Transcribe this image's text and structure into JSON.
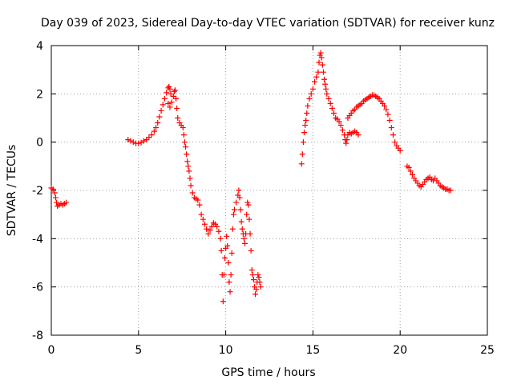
{
  "chart_data": {
    "type": "scatter",
    "title": "Day 039 of 2023, Sidereal Day-to-day VTEC variation (SDTVAR) for receiver kunz",
    "xlabel": "GPS time / hours",
    "ylabel": "SDTVAR / TECUs",
    "xlim": [
      0,
      25
    ],
    "ylim": [
      -8,
      4
    ],
    "xticks": [
      0,
      5,
      10,
      15,
      20,
      25
    ],
    "yticks": [
      -8,
      -6,
      -4,
      -2,
      0,
      2,
      4
    ],
    "xtick_labels": [
      "0",
      "5",
      "10",
      "15",
      "20",
      "25"
    ],
    "ytick_labels": [
      "-8",
      "-6",
      "-4",
      "-2",
      "0",
      "2",
      "4"
    ],
    "grid": true,
    "legend": "none",
    "marker": "plus",
    "color": "#ff0000",
    "segments": [
      [
        [
          0.0,
          -1.9
        ],
        [
          0.1,
          -1.95
        ],
        [
          0.2,
          -2.1
        ],
        [
          0.25,
          -2.3
        ],
        [
          0.3,
          -2.5
        ],
        [
          0.35,
          -2.65
        ],
        [
          0.45,
          -2.6
        ],
        [
          0.55,
          -2.55
        ],
        [
          0.65,
          -2.6
        ],
        [
          0.75,
          -2.55
        ],
        [
          0.85,
          -2.5
        ]
      ],
      [
        [
          4.4,
          0.1
        ],
        [
          4.55,
          0.05
        ],
        [
          4.7,
          0.0
        ],
        [
          4.85,
          -0.05
        ],
        [
          5.0,
          -0.05
        ],
        [
          5.15,
          -0.02
        ],
        [
          5.3,
          0.05
        ],
        [
          5.45,
          0.1
        ],
        [
          5.6,
          0.2
        ],
        [
          5.75,
          0.3
        ],
        [
          5.9,
          0.45
        ],
        [
          6.0,
          0.6
        ],
        [
          6.1,
          0.8
        ],
        [
          6.2,
          1.05
        ],
        [
          6.3,
          1.3
        ],
        [
          6.4,
          1.55
        ],
        [
          6.5,
          1.8
        ],
        [
          6.6,
          2.05
        ],
        [
          6.7,
          2.25
        ],
        [
          6.75,
          2.3
        ],
        [
          6.8,
          2.2
        ],
        [
          6.85,
          2.0
        ],
        [
          6.7,
          1.6
        ],
        [
          6.8,
          1.45
        ],
        [
          6.9,
          1.65
        ],
        [
          7.0,
          1.9
        ],
        [
          7.05,
          2.1
        ],
        [
          7.1,
          2.15
        ],
        [
          7.15,
          1.8
        ],
        [
          7.2,
          1.4
        ],
        [
          7.25,
          1.0
        ],
        [
          7.35,
          0.8
        ],
        [
          7.45,
          0.7
        ],
        [
          7.55,
          0.6
        ],
        [
          7.6,
          0.3
        ],
        [
          7.65,
          0.0
        ],
        [
          7.7,
          -0.2
        ],
        [
          7.75,
          -0.5
        ],
        [
          7.8,
          -0.8
        ],
        [
          7.85,
          -1.0
        ],
        [
          7.9,
          -1.2
        ],
        [
          7.95,
          -1.5
        ],
        [
          8.0,
          -1.8
        ],
        [
          8.1,
          -2.1
        ],
        [
          8.2,
          -2.3
        ],
        [
          8.3,
          -2.35
        ],
        [
          8.4,
          -2.4
        ],
        [
          8.5,
          -2.6
        ],
        [
          8.6,
          -3.0
        ],
        [
          8.7,
          -3.2
        ],
        [
          8.8,
          -3.4
        ],
        [
          8.9,
          -3.6
        ],
        [
          9.0,
          -3.8
        ],
        [
          9.1,
          -3.65
        ],
        [
          9.2,
          -3.5
        ],
        [
          9.3,
          -3.35
        ],
        [
          9.4,
          -3.4
        ],
        [
          9.5,
          -3.5
        ],
        [
          9.6,
          -3.7
        ],
        [
          9.7,
          -4.0
        ],
        [
          9.75,
          -4.5
        ],
        [
          9.8,
          -5.5
        ],
        [
          9.85,
          -6.6
        ],
        [
          9.9,
          -5.5
        ],
        [
          9.95,
          -4.8
        ],
        [
          10.0,
          -4.4
        ],
        [
          10.05,
          -3.9
        ],
        [
          10.1,
          -4.3
        ],
        [
          10.15,
          -5.0
        ],
        [
          10.2,
          -5.8
        ],
        [
          10.25,
          -6.2
        ],
        [
          10.3,
          -5.5
        ],
        [
          10.35,
          -4.6
        ],
        [
          10.4,
          -3.6
        ],
        [
          10.45,
          -3.0
        ],
        [
          10.5,
          -2.8
        ],
        [
          10.6,
          -2.5
        ],
        [
          10.7,
          -2.2
        ],
        [
          10.75,
          -2.0
        ],
        [
          10.8,
          -2.3
        ],
        [
          10.85,
          -2.8
        ],
        [
          10.9,
          -3.3
        ],
        [
          10.95,
          -3.6
        ],
        [
          11.0,
          -3.8
        ],
        [
          11.05,
          -4.0
        ],
        [
          11.1,
          -4.2
        ],
        [
          11.15,
          -3.8
        ],
        [
          11.2,
          -3.0
        ],
        [
          11.25,
          -2.5
        ],
        [
          11.3,
          -2.6
        ],
        [
          11.35,
          -3.2
        ],
        [
          11.4,
          -3.8
        ],
        [
          11.45,
          -4.5
        ],
        [
          11.5,
          -5.3
        ],
        [
          11.55,
          -5.5
        ],
        [
          11.6,
          -5.7
        ],
        [
          11.65,
          -6.0
        ],
        [
          11.7,
          -6.3
        ],
        [
          11.75,
          -6.1
        ],
        [
          11.8,
          -5.8
        ],
        [
          11.85,
          -5.5
        ],
        [
          11.9,
          -5.6
        ],
        [
          11.95,
          -5.8
        ],
        [
          12.0,
          -6.0
        ]
      ],
      [
        [
          14.35,
          -0.9
        ],
        [
          14.4,
          -0.5
        ],
        [
          14.45,
          0.0
        ],
        [
          14.5,
          0.4
        ],
        [
          14.55,
          0.7
        ],
        [
          14.6,
          0.9
        ],
        [
          14.65,
          1.2
        ],
        [
          14.7,
          1.5
        ],
        [
          14.8,
          1.8
        ],
        [
          14.9,
          2.0
        ],
        [
          15.0,
          2.2
        ],
        [
          15.1,
          2.5
        ],
        [
          15.2,
          2.7
        ],
        [
          15.3,
          2.9
        ],
        [
          15.35,
          3.3
        ],
        [
          15.4,
          3.6
        ],
        [
          15.45,
          3.7
        ],
        [
          15.5,
          3.5
        ],
        [
          15.55,
          3.2
        ],
        [
          15.6,
          2.9
        ],
        [
          15.65,
          2.6
        ],
        [
          15.7,
          2.4
        ],
        [
          15.75,
          2.2
        ],
        [
          15.8,
          2.0
        ],
        [
          15.9,
          1.8
        ],
        [
          16.0,
          1.6
        ],
        [
          16.1,
          1.4
        ],
        [
          16.2,
          1.2
        ],
        [
          16.3,
          1.0
        ],
        [
          16.4,
          0.95
        ],
        [
          16.5,
          0.85
        ],
        [
          16.6,
          0.7
        ],
        [
          16.7,
          0.5
        ],
        [
          16.8,
          0.3
        ],
        [
          16.85,
          0.1
        ],
        [
          16.9,
          -0.05
        ],
        [
          16.95,
          0.1
        ],
        [
          17.0,
          0.3
        ],
        [
          17.1,
          0.4
        ],
        [
          17.2,
          0.35
        ],
        [
          17.3,
          0.4
        ],
        [
          17.4,
          0.45
        ],
        [
          17.5,
          0.4
        ],
        [
          17.6,
          0.3
        ]
      ],
      [
        [
          17.0,
          1.0
        ],
        [
          17.1,
          1.1
        ],
        [
          17.2,
          1.2
        ],
        [
          17.3,
          1.3
        ],
        [
          17.4,
          1.35
        ],
        [
          17.5,
          1.45
        ],
        [
          17.6,
          1.5
        ],
        [
          17.7,
          1.55
        ],
        [
          17.8,
          1.6
        ],
        [
          17.9,
          1.7
        ],
        [
          18.0,
          1.75
        ],
        [
          18.1,
          1.8
        ],
        [
          18.2,
          1.85
        ],
        [
          18.3,
          1.9
        ],
        [
          18.4,
          1.95
        ],
        [
          18.5,
          1.95
        ],
        [
          18.6,
          1.9
        ],
        [
          18.7,
          1.85
        ],
        [
          18.8,
          1.8
        ],
        [
          18.9,
          1.7
        ],
        [
          19.0,
          1.6
        ],
        [
          19.1,
          1.5
        ],
        [
          19.2,
          1.35
        ],
        [
          19.3,
          1.15
        ],
        [
          19.4,
          0.9
        ],
        [
          19.5,
          0.6
        ],
        [
          19.6,
          0.3
        ],
        [
          19.7,
          0.0
        ],
        [
          19.8,
          -0.15
        ],
        [
          19.9,
          -0.25
        ],
        [
          20.0,
          -0.35
        ]
      ],
      [
        [
          20.4,
          -1.0
        ],
        [
          20.5,
          -1.05
        ],
        [
          20.6,
          -1.2
        ],
        [
          20.7,
          -1.35
        ],
        [
          20.8,
          -1.5
        ],
        [
          20.9,
          -1.6
        ],
        [
          21.0,
          -1.7
        ],
        [
          21.1,
          -1.8
        ],
        [
          21.2,
          -1.85
        ],
        [
          21.3,
          -1.75
        ],
        [
          21.4,
          -1.65
        ],
        [
          21.5,
          -1.55
        ],
        [
          21.6,
          -1.5
        ],
        [
          21.7,
          -1.45
        ],
        [
          21.8,
          -1.55
        ],
        [
          21.9,
          -1.6
        ],
        [
          22.0,
          -1.5
        ],
        [
          22.1,
          -1.6
        ],
        [
          22.2,
          -1.7
        ],
        [
          22.3,
          -1.8
        ],
        [
          22.4,
          -1.85
        ],
        [
          22.5,
          -1.9
        ],
        [
          22.6,
          -1.95
        ],
        [
          22.7,
          -1.95
        ],
        [
          22.8,
          -2.0
        ],
        [
          22.9,
          -2.0
        ]
      ]
    ]
  }
}
